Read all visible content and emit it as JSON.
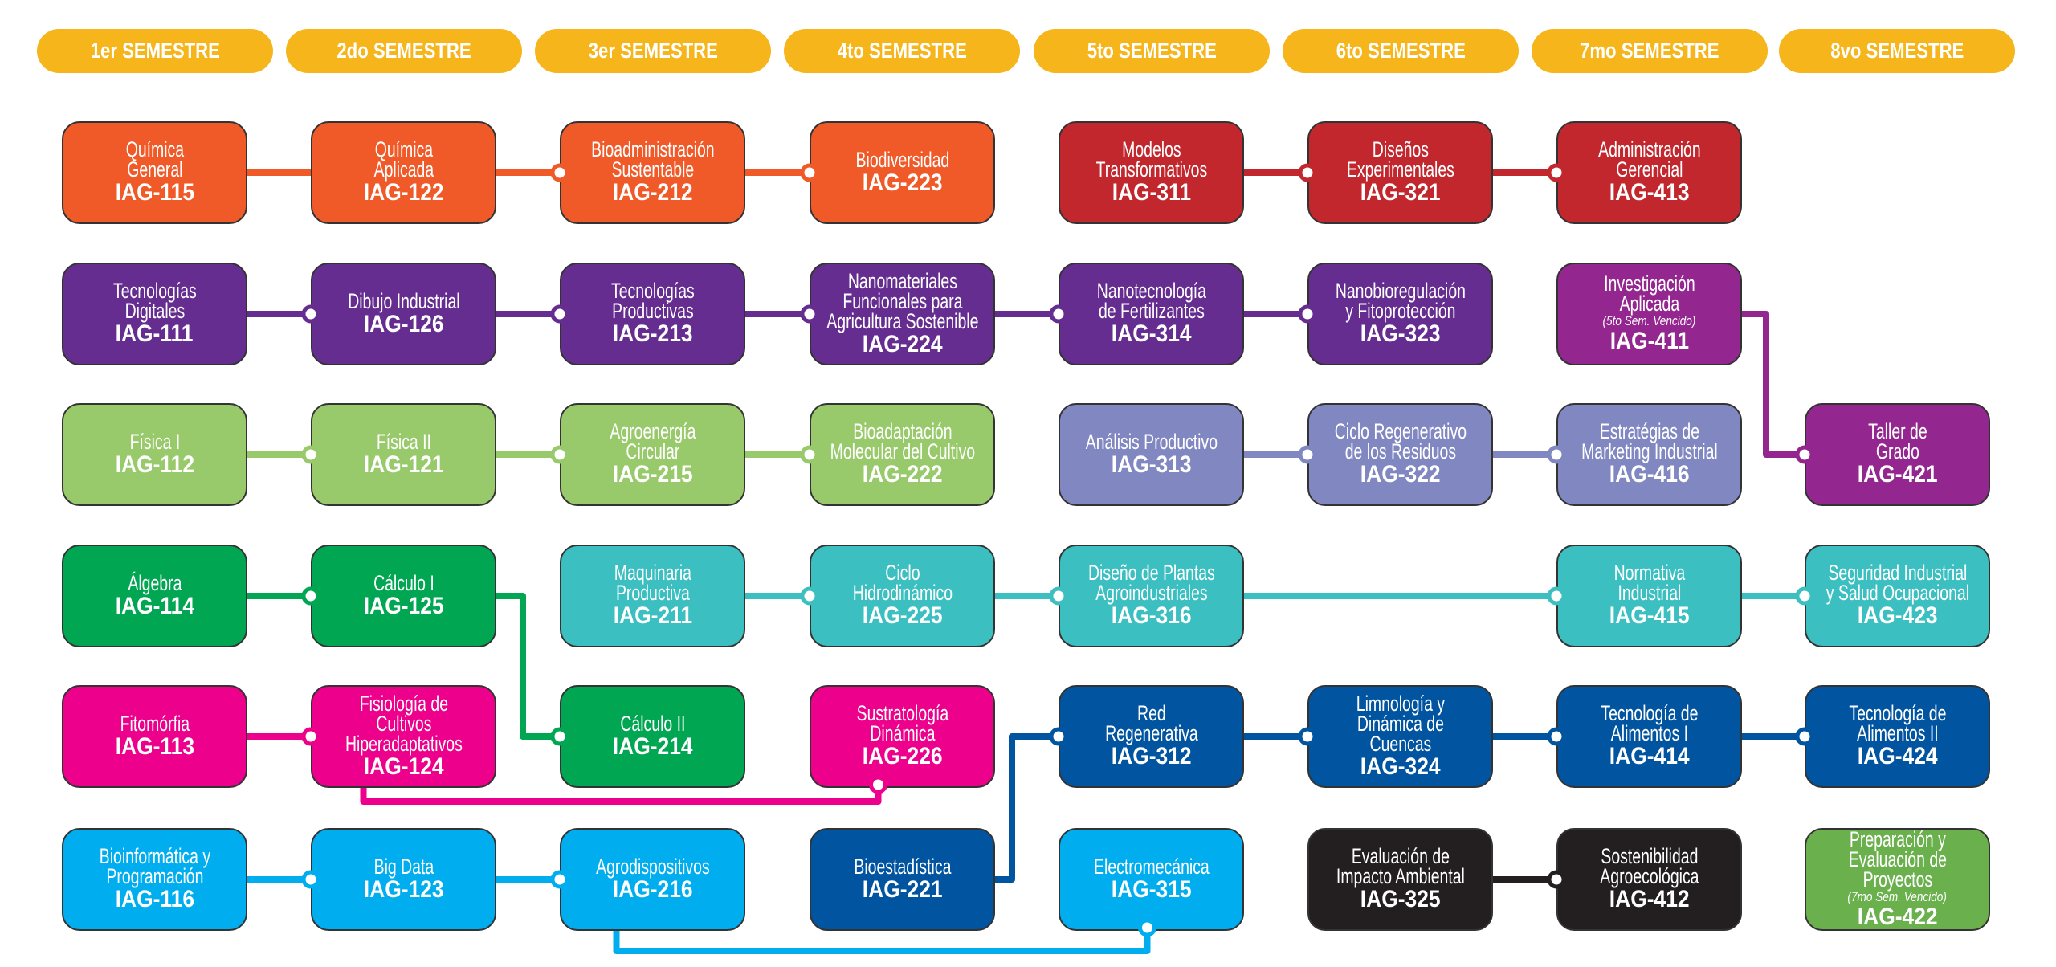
{
  "colors": {
    "header": "#F5B51B",
    "orange": "#F05A28",
    "red": "#C1272D",
    "purple": "#662D91",
    "violet": "#93278F",
    "lightgreen": "#98C96A",
    "lavender": "#8087C1",
    "green": "#00A651",
    "teal": "#3CBFC1",
    "pink": "#EC008C",
    "lightblue": "#00AEEF",
    "darkblue": "#0054A0",
    "black": "#231F20",
    "olive": "#6AB04C"
  },
  "semesters": [
    "1er SEMESTRE",
    "2do SEMESTRE",
    "3er SEMESTRE",
    "4to SEMESTRE",
    "5to SEMESTRE",
    "6to SEMESTRE",
    "7mo SEMESTRE",
    "8vo SEMESTRE"
  ],
  "courses": [
    {
      "code": "IAG-115",
      "name": "Química\nGeneral",
      "color": "orange"
    },
    {
      "code": "IAG-122",
      "name": "Química\nAplicada",
      "color": "orange"
    },
    {
      "code": "IAG-212",
      "name": "Bioadministración\nSustentable",
      "color": "orange"
    },
    {
      "code": "IAG-223",
      "name": "Biodiversidad",
      "color": "orange"
    },
    {
      "code": "IAG-311",
      "name": "Modelos\nTransformativos",
      "color": "red"
    },
    {
      "code": "IAG-321",
      "name": "Diseños\nExperimentales",
      "color": "red"
    },
    {
      "code": "IAG-413",
      "name": "Administración\nGerencial",
      "color": "red"
    },
    {
      "code": "IAG-111",
      "name": "Tecnologías\nDigitales",
      "color": "purple"
    },
    {
      "code": "IAG-126",
      "name": "Dibujo Industrial",
      "color": "purple"
    },
    {
      "code": "IAG-213",
      "name": "Tecnologías\nProductivas",
      "color": "purple"
    },
    {
      "code": "IAG-224",
      "name": "Nanomateriales\nFuncionales para\nAgricultura Sostenible",
      "color": "purple"
    },
    {
      "code": "IAG-314",
      "name": "Nanotecnología\nde Fertilizantes",
      "color": "purple"
    },
    {
      "code": "IAG-323",
      "name": "Nanobioregulación\ny Fitoprotección",
      "color": "purple"
    },
    {
      "code": "IAG-411",
      "name": "Investigación\nAplicada",
      "note": "(5to Sem. Vencido)",
      "color": "violet"
    },
    {
      "code": "IAG-112",
      "name": "Física I",
      "color": "lightgreen"
    },
    {
      "code": "IAG-121",
      "name": "Física II",
      "color": "lightgreen"
    },
    {
      "code": "IAG-215",
      "name": "Agroenergía\nCircular",
      "color": "lightgreen"
    },
    {
      "code": "IAG-222",
      "name": "Bioadaptación\nMolecular del Cultivo",
      "color": "lightgreen"
    },
    {
      "code": "IAG-313",
      "name": "Análisis Productivo",
      "color": "lavender"
    },
    {
      "code": "IAG-322",
      "name": "Ciclo Regenerativo\nde los Residuos",
      "color": "lavender"
    },
    {
      "code": "IAG-416",
      "name": "Estratégias de\nMarketing Industrial",
      "color": "lavender"
    },
    {
      "code": "IAG-421",
      "name": "Taller de\nGrado",
      "color": "violet"
    },
    {
      "code": "IAG-114",
      "name": "Álgebra",
      "color": "green"
    },
    {
      "code": "IAG-125",
      "name": "Cálculo I",
      "color": "green"
    },
    {
      "code": "IAG-211",
      "name": "Maquinaria\nProductiva",
      "color": "teal"
    },
    {
      "code": "IAG-225",
      "name": "Ciclo\nHidrodinámico",
      "color": "teal"
    },
    {
      "code": "IAG-316",
      "name": "Diseño de Plantas\nAgroindustriales",
      "color": "teal"
    },
    {
      "code": "IAG-415",
      "name": "Normativa\nIndustrial",
      "color": "teal"
    },
    {
      "code": "IAG-423",
      "name": "Seguridad Industrial\ny Salud Ocupacional",
      "color": "teal"
    },
    {
      "code": "IAG-113",
      "name": "Fitomórfia",
      "color": "pink"
    },
    {
      "code": "IAG-124",
      "name": "Fisiología de\nCultivos\nHiperadaptativos",
      "color": "pink"
    },
    {
      "code": "IAG-214",
      "name": "Cálculo II",
      "color": "green"
    },
    {
      "code": "IAG-226",
      "name": "Sustratología\nDinámica",
      "color": "pink"
    },
    {
      "code": "IAG-312",
      "name": "Red\nRegenerativa",
      "color": "darkblue"
    },
    {
      "code": "IAG-324",
      "name": "Limnología y\nDinámica de\nCuencas",
      "color": "darkblue"
    },
    {
      "code": "IAG-414",
      "name": "Tecnología de\nAlimentos I",
      "color": "darkblue"
    },
    {
      "code": "IAG-424",
      "name": "Tecnología de\nAlimentos II",
      "color": "darkblue"
    },
    {
      "code": "IAG-116",
      "name": "Bioinformática y\nProgramación",
      "color": "lightblue"
    },
    {
      "code": "IAG-123",
      "name": "Big Data",
      "color": "lightblue"
    },
    {
      "code": "IAG-216",
      "name": "Agrodispositivos",
      "color": "lightblue"
    },
    {
      "code": "IAG-221",
      "name": "Bioestadística",
      "color": "darkblue"
    },
    {
      "code": "IAG-315",
      "name": "Electromecánica",
      "color": "lightblue"
    },
    {
      "code": "IAG-325",
      "name": "Evaluación de\nImpacto Ambiental",
      "color": "black"
    },
    {
      "code": "IAG-412",
      "name": "Sostenibilidad\nAgroecológica",
      "color": "black"
    },
    {
      "code": "IAG-422",
      "name": "Preparación y\nEvaluación de\nProyectos",
      "note": "(7mo Sem. Vencido)",
      "color": "olive"
    }
  ],
  "prerequisites": [
    {
      "from": "IAG-115",
      "to": "IAG-122",
      "color": "orange"
    },
    {
      "from": "IAG-122",
      "to": "IAG-212",
      "color": "orange"
    },
    {
      "from": "IAG-212",
      "to": "IAG-223",
      "color": "orange"
    },
    {
      "from": "IAG-311",
      "to": "IAG-321",
      "color": "red"
    },
    {
      "from": "IAG-321",
      "to": "IAG-413",
      "color": "red"
    },
    {
      "from": "IAG-111",
      "to": "IAG-126",
      "color": "purple"
    },
    {
      "from": "IAG-126",
      "to": "IAG-213",
      "color": "purple"
    },
    {
      "from": "IAG-213",
      "to": "IAG-224",
      "color": "purple"
    },
    {
      "from": "IAG-224",
      "to": "IAG-314",
      "color": "purple"
    },
    {
      "from": "IAG-314",
      "to": "IAG-323",
      "color": "purple"
    },
    {
      "from": "IAG-411",
      "to": "IAG-421",
      "color": "violet"
    },
    {
      "from": "IAG-112",
      "to": "IAG-121",
      "color": "lightgreen"
    },
    {
      "from": "IAG-121",
      "to": "IAG-215",
      "color": "lightgreen"
    },
    {
      "from": "IAG-215",
      "to": "IAG-222",
      "color": "lightgreen"
    },
    {
      "from": "IAG-313",
      "to": "IAG-322",
      "color": "lavender"
    },
    {
      "from": "IAG-322",
      "to": "IAG-416",
      "color": "lavender"
    },
    {
      "from": "IAG-114",
      "to": "IAG-125",
      "color": "green"
    },
    {
      "from": "IAG-125",
      "to": "IAG-214",
      "color": "green"
    },
    {
      "from": "IAG-211",
      "to": "IAG-225",
      "color": "teal"
    },
    {
      "from": "IAG-225",
      "to": "IAG-316",
      "color": "teal"
    },
    {
      "from": "IAG-316",
      "to": "IAG-415",
      "color": "teal"
    },
    {
      "from": "IAG-415",
      "to": "IAG-423",
      "color": "teal"
    },
    {
      "from": "IAG-113",
      "to": "IAG-124",
      "color": "pink"
    },
    {
      "from": "IAG-124",
      "to": "IAG-226",
      "color": "pink"
    },
    {
      "from": "IAG-221",
      "to": "IAG-312",
      "color": "darkblue"
    },
    {
      "from": "IAG-312",
      "to": "IAG-324",
      "color": "darkblue"
    },
    {
      "from": "IAG-324",
      "to": "IAG-414",
      "color": "darkblue"
    },
    {
      "from": "IAG-414",
      "to": "IAG-424",
      "color": "darkblue"
    },
    {
      "from": "IAG-116",
      "to": "IAG-123",
      "color": "lightblue"
    },
    {
      "from": "IAG-123",
      "to": "IAG-216",
      "color": "lightblue"
    },
    {
      "from": "IAG-216",
      "to": "IAG-315",
      "color": "lightblue"
    },
    {
      "from": "IAG-325",
      "to": "IAG-412",
      "color": "black"
    }
  ]
}
